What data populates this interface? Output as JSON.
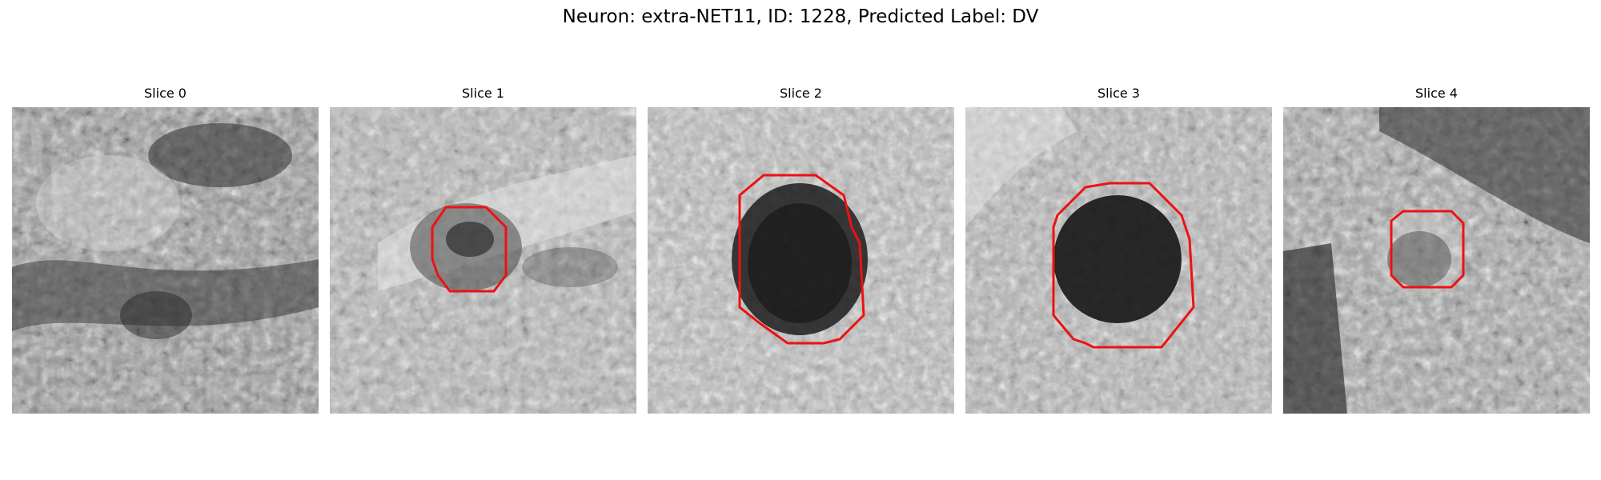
{
  "figure": {
    "title": "Neuron: extra-NET11, ID: 1228, Predicted Label: DV"
  },
  "colors": {
    "contour": "#ee1111",
    "background": "#ffffff"
  },
  "panels": [
    {
      "title": "Slice 0",
      "has_contour": false
    },
    {
      "title": "Slice 1",
      "has_contour": true
    },
    {
      "title": "Slice 2",
      "has_contour": true
    },
    {
      "title": "Slice 3",
      "has_contour": true
    },
    {
      "title": "Slice 4",
      "has_contour": true
    }
  ]
}
